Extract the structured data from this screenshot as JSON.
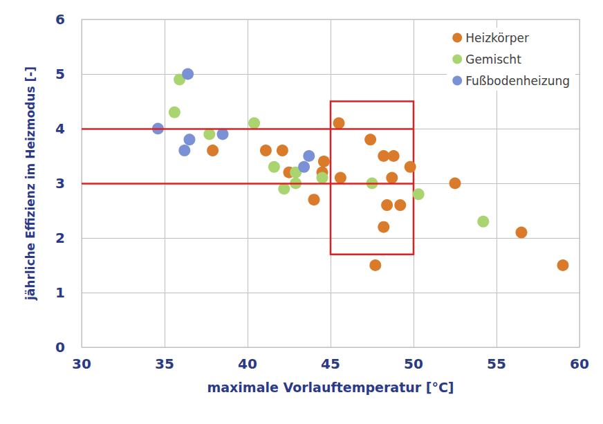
{
  "chart_data": {
    "type": "scatter",
    "x_label": "maximale Vorlauftemperatur [°C]",
    "y_label": "jährliche Effizienz im Heizmodus [-]",
    "xlim": [
      30,
      60
    ],
    "xticks": [
      30,
      35,
      40,
      45,
      50,
      55,
      60
    ],
    "ylim": [
      0,
      6
    ],
    "yticks": [
      0,
      1,
      2,
      3,
      4,
      5,
      6
    ],
    "grid": true,
    "legend": "upper right",
    "marker": "circle",
    "series": [
      {
        "name": "Heizkörper",
        "color": "#d97b2b",
        "x": [
          37.9,
          41.1,
          42.1,
          42.5,
          44.6,
          44.5,
          44.0,
          45.5,
          45.6,
          47.4,
          48.2,
          48.8,
          49.8,
          48.7,
          48.4,
          49.2,
          48.2,
          47.7,
          52.5,
          56.5,
          59.0
        ],
        "values": [
          3.6,
          3.6,
          3.6,
          3.2,
          3.4,
          3.2,
          2.7,
          4.1,
          3.1,
          3.8,
          3.5,
          3.5,
          3.3,
          3.1,
          2.6,
          2.6,
          2.2,
          1.5,
          3.0,
          2.1,
          1.5
        ]
      },
      {
        "name": "Gemischt",
        "color": "#a9d46f",
        "x": [
          35.9,
          35.6,
          37.7,
          40.4,
          41.6,
          42.2,
          42.9,
          42.9,
          44.5,
          47.5,
          50.3,
          54.2
        ],
        "values": [
          4.9,
          4.3,
          3.9,
          4.1,
          3.3,
          2.9,
          3.0,
          3.2,
          3.1,
          3.0,
          2.8,
          2.3
        ]
      },
      {
        "name": "Fußbodenheizung",
        "color": "#7b91d6",
        "x": [
          34.6,
          36.4,
          36.2,
          36.5,
          38.5,
          43.7,
          43.4
        ],
        "values": [
          4.0,
          5.0,
          3.6,
          3.8,
          3.9,
          3.5,
          3.3
        ]
      }
    ],
    "reference_lines": [
      {
        "y": 4,
        "x": [
          30,
          50
        ],
        "color": "#e02020"
      },
      {
        "y": 3,
        "x": [
          30,
          50
        ],
        "color": "#e02020"
      }
    ],
    "highlight_box": {
      "x": [
        45,
        50
      ],
      "y": [
        1.7,
        4.5
      ],
      "color": "#e02020"
    }
  }
}
